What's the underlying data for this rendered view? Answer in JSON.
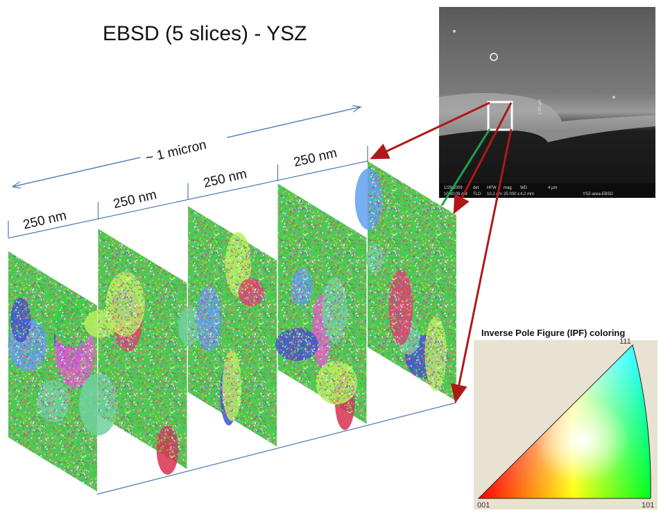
{
  "title": "EBSD (5 slices) - YSZ",
  "span_label": "~ 1 micron",
  "slice_labels": [
    "250 nm",
    "250 nm",
    "250 nm",
    "250 nm"
  ],
  "sem_image": {
    "scale_marker": "1.02 µm",
    "info_bar": [
      "1/29/2009",
      "10:30:09 AM",
      "det",
      "TLD",
      "HFW",
      "10.2 µm",
      "mag",
      "25 000 x",
      "WD",
      "4.2 mm",
      "4 µm",
      "YSZ-area-EBSD"
    ]
  },
  "ipf": {
    "title": "Inverse Pole Figure (IPF) coloring",
    "corners": [
      "111",
      "001",
      "101"
    ]
  }
}
